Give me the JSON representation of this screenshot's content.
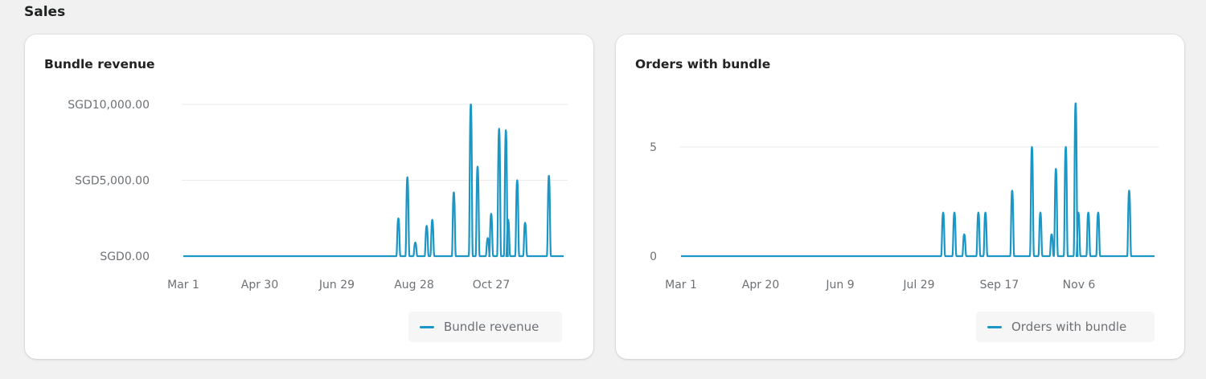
{
  "section": {
    "title": "Sales"
  },
  "colors": {
    "series": "#1b96c5",
    "grid": "#ebebeb",
    "axis_text": "#6d7175"
  },
  "cards": [
    {
      "title": "Bundle revenue",
      "legend": "Bundle revenue"
    },
    {
      "title": "Orders with bundle",
      "legend": "Orders with bundle"
    }
  ],
  "chart_data": [
    {
      "type": "line",
      "title": "Bundle revenue",
      "xlabel": "",
      "ylabel": "",
      "y_ticks": [
        "SGD0.00",
        "SGD5,000.00",
        "SGD10,000.00"
      ],
      "ylim": [
        0,
        10000
      ],
      "x_ticks": [
        "Mar 1",
        "Apr 30",
        "Jun 29",
        "Aug 28",
        "Oct 27"
      ],
      "grid": true,
      "legend": [
        "Bundle revenue"
      ],
      "legend_position": "bottom-right",
      "series": [
        {
          "name": "Bundle revenue",
          "note": "daily values; zero except spikes listed (x = approx. day index from Mar 1)",
          "points": [
            {
              "day": 190,
              "value": 2500
            },
            {
              "day": 198,
              "value": 5200
            },
            {
              "day": 205,
              "value": 900
            },
            {
              "day": 215,
              "value": 2000
            },
            {
              "day": 220,
              "value": 2400
            },
            {
              "day": 239,
              "value": 4200
            },
            {
              "day": 254,
              "value": 10000
            },
            {
              "day": 260,
              "value": 5900
            },
            {
              "day": 269,
              "value": 1200
            },
            {
              "day": 272,
              "value": 2800
            },
            {
              "day": 279,
              "value": 8400
            },
            {
              "day": 285,
              "value": 8300
            },
            {
              "day": 287,
              "value": 2400
            },
            {
              "day": 295,
              "value": 5000
            },
            {
              "day": 302,
              "value": 2200
            },
            {
              "day": 323,
              "value": 5300
            }
          ],
          "total_days": 336
        }
      ]
    },
    {
      "type": "line",
      "title": "Orders with bundle",
      "xlabel": "",
      "ylabel": "",
      "y_ticks": [
        "0",
        "5"
      ],
      "ylim": [
        0,
        7
      ],
      "x_ticks": [
        "Mar 1",
        "Apr 20",
        "Jun 9",
        "Jul 29",
        "Sep 17",
        "Nov 6"
      ],
      "grid": true,
      "legend": [
        "Orders with bundle"
      ],
      "legend_position": "bottom-right",
      "series": [
        {
          "name": "Orders with bundle",
          "note": "daily values; zero except spikes listed (x = approx. day index from Mar 1)",
          "points": [
            {
              "day": 186,
              "value": 2
            },
            {
              "day": 194,
              "value": 2
            },
            {
              "day": 201,
              "value": 1
            },
            {
              "day": 211,
              "value": 2
            },
            {
              "day": 216,
              "value": 2
            },
            {
              "day": 235,
              "value": 3
            },
            {
              "day": 249,
              "value": 5
            },
            {
              "day": 255,
              "value": 2
            },
            {
              "day": 263,
              "value": 1
            },
            {
              "day": 266,
              "value": 4
            },
            {
              "day": 273,
              "value": 5
            },
            {
              "day": 280,
              "value": 7
            },
            {
              "day": 282,
              "value": 2
            },
            {
              "day": 289,
              "value": 2
            },
            {
              "day": 296,
              "value": 2
            },
            {
              "day": 318,
              "value": 3
            }
          ],
          "total_days": 336
        }
      ]
    }
  ]
}
